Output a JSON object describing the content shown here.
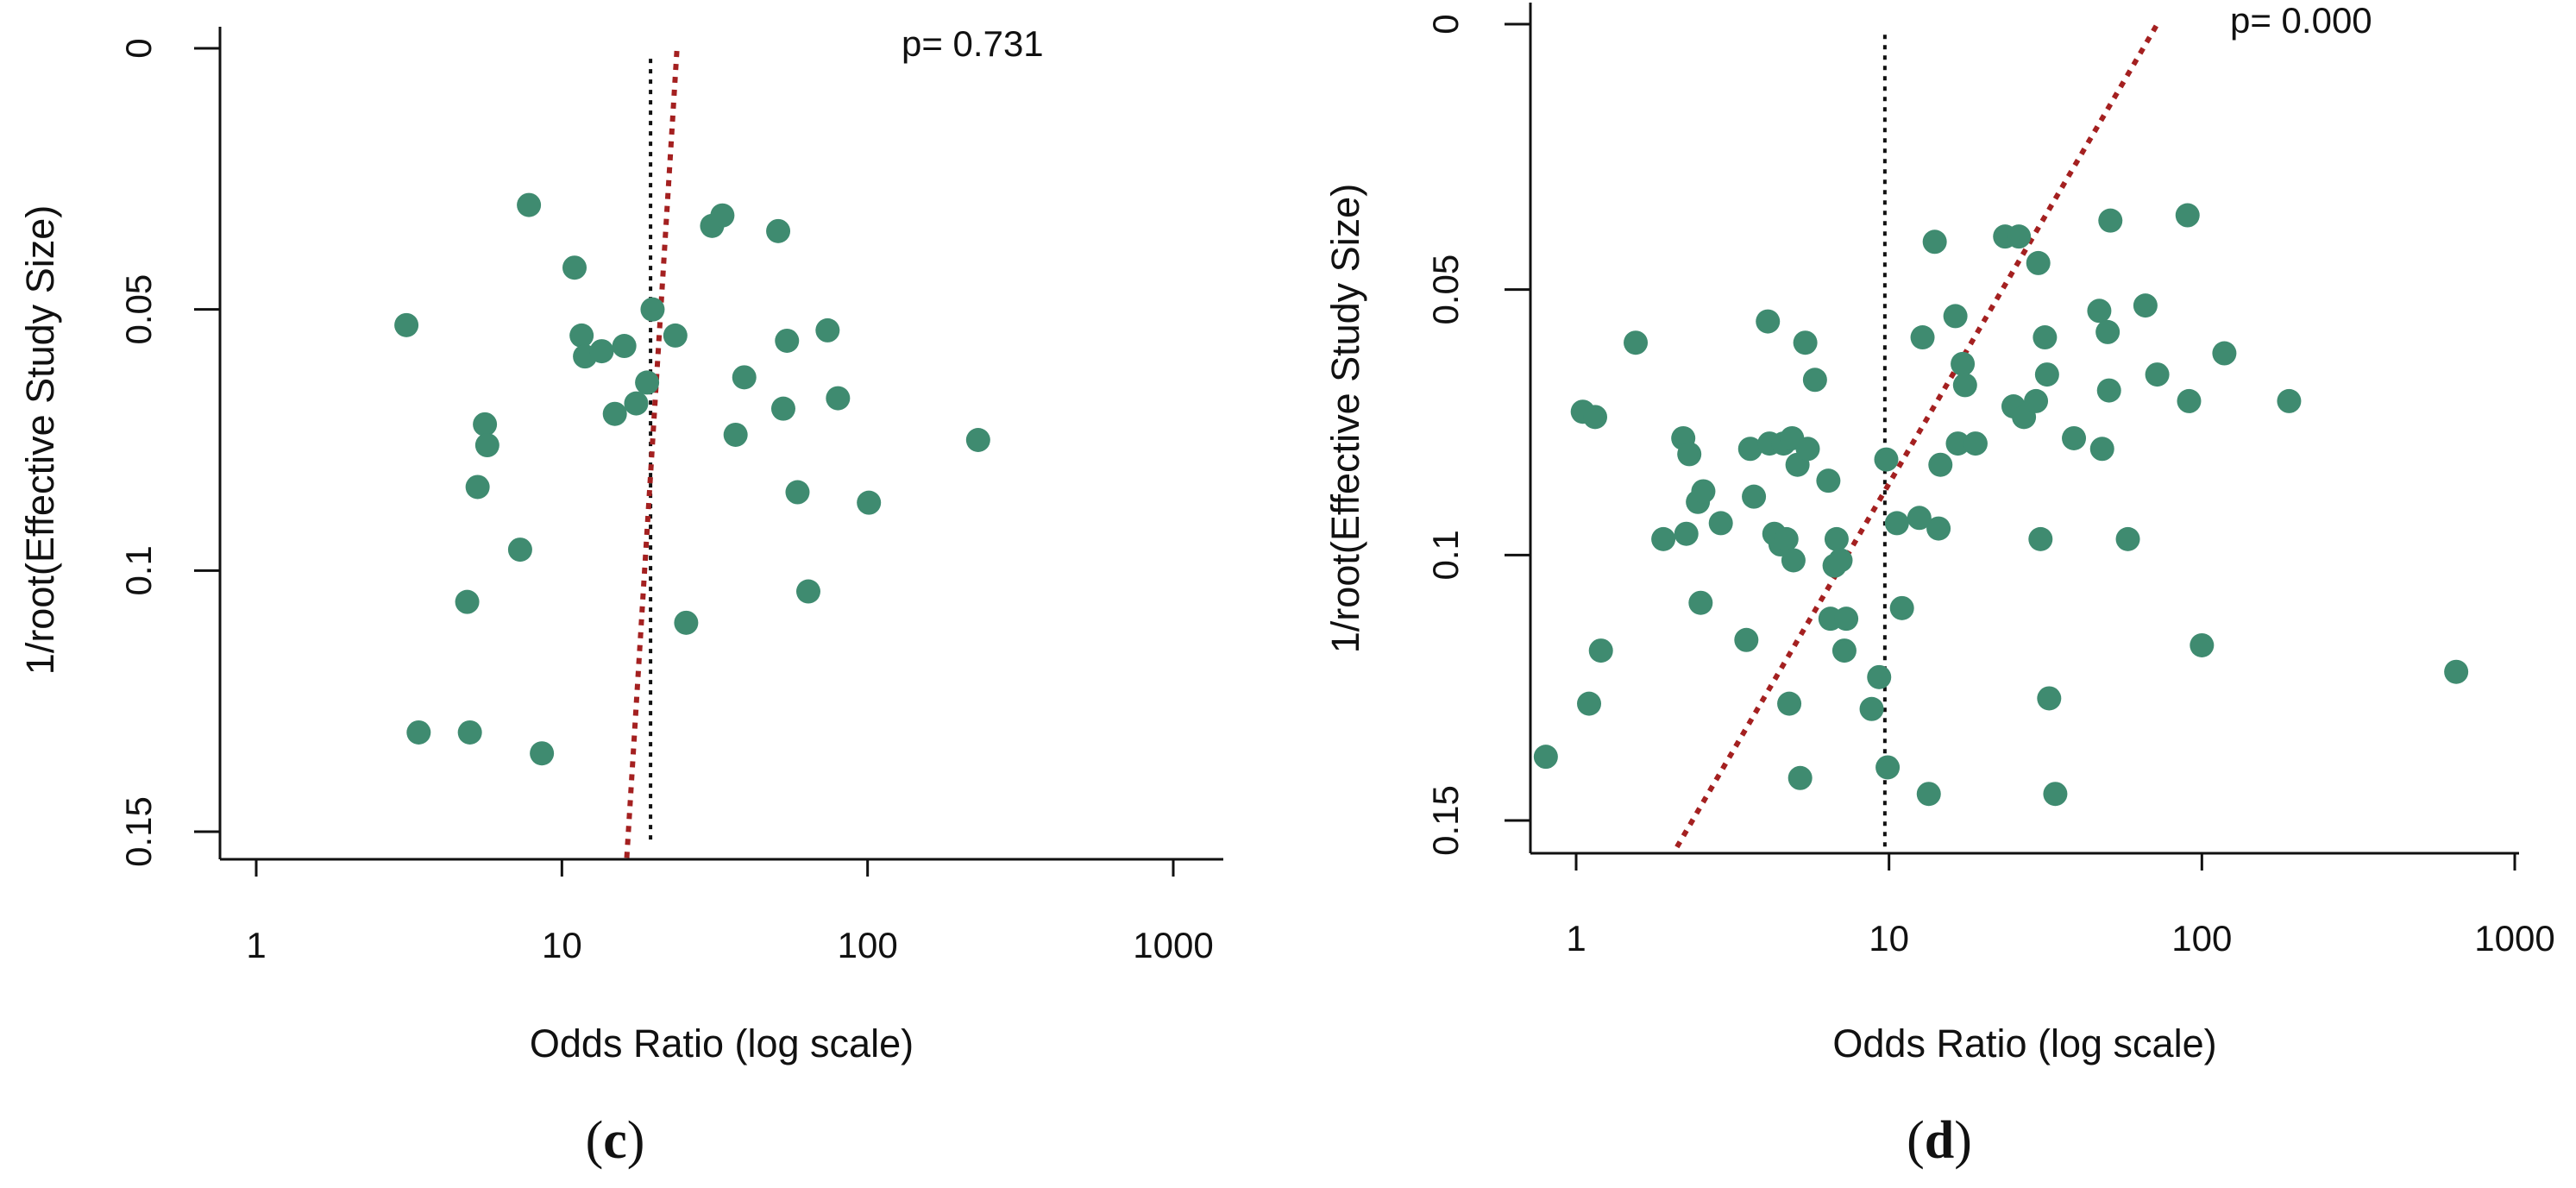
{
  "chart_data": [
    {
      "type": "scatter",
      "panel_label": "(c)",
      "panel_letter": "c",
      "annotation": "p= 0.731",
      "xlabel": "Odds Ratio (log scale)",
      "ylabel": "1/root(Effective Study Size)",
      "x_scale": "log",
      "xlim": [
        0.85,
        1200
      ],
      "ylim": [
        0.155,
        0
      ],
      "xticks": [
        1,
        10,
        100,
        1000
      ],
      "xtick_labels": [
        "1",
        "10",
        "100",
        "1000"
      ],
      "yticks": [
        0,
        0.05,
        0.1,
        0.15
      ],
      "ytick_labels": [
        "0",
        "0.05",
        "0.1",
        "0.15"
      ],
      "point_color": "#3f8b70",
      "reference_line_color": "#111111",
      "egger_line_color": "#a42020",
      "reference_line": {
        "x": 19.5,
        "y_from": 0.152,
        "y_to": 0.002
      },
      "egger_line": {
        "x1": 16.3,
        "y1": 0.155,
        "x2": 23.8,
        "y2": 0
      },
      "points": [
        {
          "x": 3.1,
          "y": 0.053
        },
        {
          "x": 3.4,
          "y": 0.131
        },
        {
          "x": 4.9,
          "y": 0.106
        },
        {
          "x": 5.0,
          "y": 0.131
        },
        {
          "x": 5.3,
          "y": 0.084
        },
        {
          "x": 5.6,
          "y": 0.072
        },
        {
          "x": 5.7,
          "y": 0.076
        },
        {
          "x": 7.3,
          "y": 0.096
        },
        {
          "x": 7.8,
          "y": 0.03
        },
        {
          "x": 8.6,
          "y": 0.135
        },
        {
          "x": 11.0,
          "y": 0.042
        },
        {
          "x": 11.6,
          "y": 0.055
        },
        {
          "x": 11.9,
          "y": 0.059
        },
        {
          "x": 13.5,
          "y": 0.058
        },
        {
          "x": 14.9,
          "y": 0.07
        },
        {
          "x": 16.0,
          "y": 0.057
        },
        {
          "x": 17.5,
          "y": 0.068
        },
        {
          "x": 19.0,
          "y": 0.064
        },
        {
          "x": 19.8,
          "y": 0.05
        },
        {
          "x": 23.5,
          "y": 0.055
        },
        {
          "x": 25.5,
          "y": 0.11
        },
        {
          "x": 31.0,
          "y": 0.034
        },
        {
          "x": 33.5,
          "y": 0.032
        },
        {
          "x": 37.0,
          "y": 0.074
        },
        {
          "x": 39.5,
          "y": 0.063
        },
        {
          "x": 51.0,
          "y": 0.035
        },
        {
          "x": 53.0,
          "y": 0.069
        },
        {
          "x": 54.5,
          "y": 0.056
        },
        {
          "x": 59.0,
          "y": 0.085
        },
        {
          "x": 64.0,
          "y": 0.104
        },
        {
          "x": 74.0,
          "y": 0.054
        },
        {
          "x": 80.0,
          "y": 0.067
        },
        {
          "x": 101.0,
          "y": 0.087
        },
        {
          "x": 230.0,
          "y": 0.075
        }
      ]
    },
    {
      "type": "scatter",
      "panel_label": "(d)",
      "panel_letter": "d",
      "annotation": "p= 0.000",
      "xlabel": "Odds Ratio (log scale)",
      "ylabel": "1/root(Effective Study Size)",
      "x_scale": "log",
      "xlim": [
        0.8,
        1400
      ],
      "ylim": [
        0.155,
        0
      ],
      "xticks": [
        1,
        10,
        100,
        1000
      ],
      "xtick_labels": [
        "1",
        "10",
        "100",
        "1000"
      ],
      "yticks": [
        0,
        0.05,
        0.1,
        0.15
      ],
      "ytick_labels": [
        "0",
        "0.05",
        "0.1",
        "0.15"
      ],
      "point_color": "#3f8b70",
      "reference_line_color": "#111111",
      "egger_line_color": "#a42020",
      "reference_line": {
        "x": 9.7,
        "y_from": 0.155,
        "y_to": 0.002
      },
      "egger_line": {
        "x1": 2.1,
        "y1": 0.155,
        "x2": 72.0,
        "y2": 0
      },
      "points": [
        {
          "x": 0.8,
          "y": 0.138
        },
        {
          "x": 1.05,
          "y": 0.073
        },
        {
          "x": 1.1,
          "y": 0.128
        },
        {
          "x": 1.15,
          "y": 0.074
        },
        {
          "x": 1.2,
          "y": 0.118
        },
        {
          "x": 1.55,
          "y": 0.06
        },
        {
          "x": 1.9,
          "y": 0.097
        },
        {
          "x": 2.2,
          "y": 0.078
        },
        {
          "x": 2.25,
          "y": 0.096
        },
        {
          "x": 2.3,
          "y": 0.081
        },
        {
          "x": 2.45,
          "y": 0.09
        },
        {
          "x": 2.5,
          "y": 0.109
        },
        {
          "x": 2.55,
          "y": 0.088
        },
        {
          "x": 2.9,
          "y": 0.094
        },
        {
          "x": 3.5,
          "y": 0.116
        },
        {
          "x": 3.6,
          "y": 0.08
        },
        {
          "x": 3.7,
          "y": 0.089
        },
        {
          "x": 4.1,
          "y": 0.056
        },
        {
          "x": 4.15,
          "y": 0.079
        },
        {
          "x": 4.3,
          "y": 0.096
        },
        {
          "x": 4.5,
          "y": 0.098
        },
        {
          "x": 4.6,
          "y": 0.079
        },
        {
          "x": 4.7,
          "y": 0.097
        },
        {
          "x": 4.8,
          "y": 0.128
        },
        {
          "x": 4.9,
          "y": 0.078
        },
        {
          "x": 4.95,
          "y": 0.101
        },
        {
          "x": 5.1,
          "y": 0.083
        },
        {
          "x": 5.2,
          "y": 0.142
        },
        {
          "x": 5.4,
          "y": 0.06
        },
        {
          "x": 5.5,
          "y": 0.08
        },
        {
          "x": 5.8,
          "y": 0.067
        },
        {
          "x": 6.4,
          "y": 0.086
        },
        {
          "x": 6.5,
          "y": 0.112
        },
        {
          "x": 6.7,
          "y": 0.102
        },
        {
          "x": 6.8,
          "y": 0.097
        },
        {
          "x": 7.0,
          "y": 0.101
        },
        {
          "x": 7.2,
          "y": 0.118
        },
        {
          "x": 7.3,
          "y": 0.112
        },
        {
          "x": 8.8,
          "y": 0.129
        },
        {
          "x": 9.3,
          "y": 0.123
        },
        {
          "x": 9.8,
          "y": 0.082
        },
        {
          "x": 9.9,
          "y": 0.14
        },
        {
          "x": 10.6,
          "y": 0.094
        },
        {
          "x": 11.0,
          "y": 0.11
        },
        {
          "x": 12.5,
          "y": 0.093
        },
        {
          "x": 12.8,
          "y": 0.059
        },
        {
          "x": 13.4,
          "y": 0.145
        },
        {
          "x": 14.0,
          "y": 0.041
        },
        {
          "x": 14.4,
          "y": 0.095
        },
        {
          "x": 14.6,
          "y": 0.083
        },
        {
          "x": 16.3,
          "y": 0.055
        },
        {
          "x": 16.6,
          "y": 0.079
        },
        {
          "x": 17.2,
          "y": 0.064
        },
        {
          "x": 17.5,
          "y": 0.068
        },
        {
          "x": 18.9,
          "y": 0.079
        },
        {
          "x": 23.5,
          "y": 0.04
        },
        {
          "x": 25.0,
          "y": 0.072
        },
        {
          "x": 26.0,
          "y": 0.04
        },
        {
          "x": 27.0,
          "y": 0.074
        },
        {
          "x": 29.5,
          "y": 0.071
        },
        {
          "x": 30.0,
          "y": 0.045
        },
        {
          "x": 30.5,
          "y": 0.097
        },
        {
          "x": 31.5,
          "y": 0.059
        },
        {
          "x": 32.0,
          "y": 0.066
        },
        {
          "x": 32.5,
          "y": 0.127
        },
        {
          "x": 34.0,
          "y": 0.145
        },
        {
          "x": 39.0,
          "y": 0.078
        },
        {
          "x": 47.0,
          "y": 0.054
        },
        {
          "x": 48.0,
          "y": 0.08
        },
        {
          "x": 50.0,
          "y": 0.058
        },
        {
          "x": 50.5,
          "y": 0.069
        },
        {
          "x": 51.0,
          "y": 0.037
        },
        {
          "x": 58.0,
          "y": 0.097
        },
        {
          "x": 66.0,
          "y": 0.053
        },
        {
          "x": 72.0,
          "y": 0.066
        },
        {
          "x": 90.0,
          "y": 0.036
        },
        {
          "x": 91.0,
          "y": 0.071
        },
        {
          "x": 100.0,
          "y": 0.117
        },
        {
          "x": 118.0,
          "y": 0.062
        },
        {
          "x": 190.0,
          "y": 0.071
        },
        {
          "x": 650.0,
          "y": 0.122
        }
      ]
    }
  ]
}
